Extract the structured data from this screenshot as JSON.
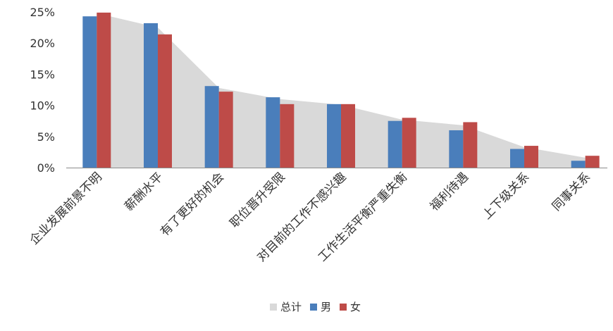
{
  "chart_data": {
    "type": "bar",
    "categories": [
      "企业发展前景不明",
      "薪酬水平",
      "有了更好的机会",
      "职位晋升受限",
      "对目前的工作不感兴趣",
      "工作生活平衡严重失衡",
      "福利待遇",
      "上下级关系",
      "同事关系"
    ],
    "series": [
      {
        "name": "总计",
        "type": "area",
        "color": "#d9d9d9",
        "values": [
          24.8,
          22.5,
          12.8,
          11.0,
          10.1,
          7.7,
          6.8,
          3.3,
          1.6
        ]
      },
      {
        "name": "男",
        "type": "bar",
        "color": "#4a7ebb",
        "values": [
          24.3,
          23.2,
          13.1,
          11.3,
          10.2,
          7.5,
          6.0,
          3.0,
          1.1
        ]
      },
      {
        "name": "女",
        "type": "bar",
        "color": "#be4b48",
        "values": [
          24.9,
          21.4,
          12.2,
          10.2,
          10.2,
          8.0,
          7.3,
          3.5,
          1.9
        ]
      }
    ],
    "yticks": [
      "0%",
      "5%",
      "10%",
      "15%",
      "20%",
      "25%"
    ],
    "ylim": [
      0,
      25
    ],
    "legend_position": "bottom",
    "grid": false
  }
}
